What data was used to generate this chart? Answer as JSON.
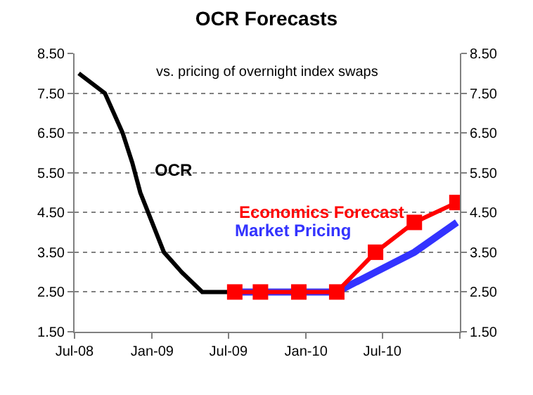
{
  "chart_data": {
    "type": "line",
    "title": "OCR Forecasts",
    "subtitle": "vs. pricing of overnight index swaps",
    "series": [
      {
        "name": "OCR",
        "color": "#000000",
        "x": [
          "2008-07-11",
          "2008-09-11",
          "2008-10-23",
          "2008-11-15",
          "2008-12-04",
          "2009-01-29",
          "2009-03-12",
          "2009-04-30",
          "2009-07-01"
        ],
        "values": [
          8.0,
          7.5,
          6.5,
          5.75,
          5.0,
          3.5,
          3.0,
          2.5,
          2.5
        ]
      },
      {
        "name": "Market Pricing",
        "color": "#3333ff",
        "x": [
          "2009-07-01",
          "2010-03-15",
          "2010-06-15",
          "2010-09-15",
          "2010-12-25"
        ],
        "values": [
          2.5,
          2.5,
          3.0,
          3.5,
          4.25
        ]
      },
      {
        "name": "Economics Forecast",
        "color": "#ff0000",
        "marker": "square",
        "x": [
          "2009-07-16",
          "2009-09-15",
          "2009-12-15",
          "2010-03-15",
          "2010-06-15",
          "2010-09-15",
          "2010-12-25"
        ],
        "values": [
          2.5,
          2.5,
          2.5,
          2.5,
          3.5,
          4.25,
          4.75
        ]
      }
    ],
    "xlim": [
      "2008-07-01",
      "2011-01-01"
    ],
    "xticks": [
      {
        "value": "2008-07-01",
        "label": "Jul-08"
      },
      {
        "value": "2009-01-01",
        "label": "Jan-09"
      },
      {
        "value": "2009-07-01",
        "label": "Jul-09"
      },
      {
        "value": "2010-01-01",
        "label": "Jan-10"
      },
      {
        "value": "2010-07-01",
        "label": "Jul-10"
      },
      {
        "value": "2011-01-01",
        "label": null
      }
    ],
    "ylim": [
      1.5,
      8.5
    ],
    "yticks": [
      {
        "value": 1.5,
        "label": "1.50"
      },
      {
        "value": 2.5,
        "label": "2.50"
      },
      {
        "value": 3.5,
        "label": "3.50"
      },
      {
        "value": 4.5,
        "label": "4.50"
      },
      {
        "value": 5.5,
        "label": "5.50"
      },
      {
        "value": 6.5,
        "label": "6.50"
      },
      {
        "value": 7.5,
        "label": "7.50"
      },
      {
        "value": 8.5,
        "label": "8.50"
      }
    ],
    "y2lim": [
      1.5,
      8.5
    ],
    "y2ticks": [
      {
        "value": 1.5,
        "label": "1.50"
      },
      {
        "value": 2.5,
        "label": "2.50"
      },
      {
        "value": 3.5,
        "label": "3.50"
      },
      {
        "value": 4.5,
        "label": "4.50"
      },
      {
        "value": 5.5,
        "label": "5.50"
      },
      {
        "value": 6.5,
        "label": "6.50"
      },
      {
        "value": 7.5,
        "label": "7.50"
      },
      {
        "value": 8.5,
        "label": "8.50"
      }
    ],
    "grid": "y",
    "legend": false
  }
}
